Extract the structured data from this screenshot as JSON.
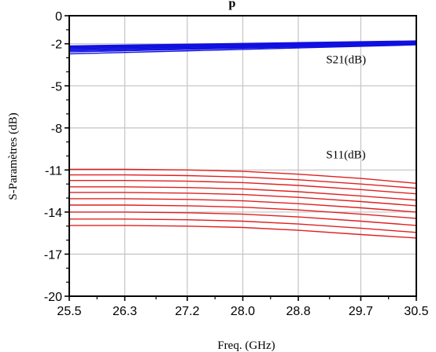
{
  "chart_data": {
    "type": "line",
    "title": "p",
    "xlabel": "Freq. (GHz)",
    "ylabel": "S-Paramètres (dB)",
    "xlim": [
      25.5,
      30.5
    ],
    "ylim": [
      -20,
      0
    ],
    "x_ticks": [
      "25.5",
      "26.3",
      "27.2",
      "28.0",
      "28.8",
      "29.7",
      "30.5"
    ],
    "y_ticks": [
      "0",
      "-2",
      "-5",
      "-8",
      "-11",
      "-14",
      "-17",
      "-20"
    ],
    "grid": true,
    "annotations": [
      {
        "text": "S21(dB)",
        "x": 29.2,
        "y": -3.1
      },
      {
        "text": "S11(dB)",
        "x": 29.2,
        "y": -9.9
      }
    ],
    "colors": {
      "S21": "#1010e0",
      "S11": "#e02020",
      "grid": "#c8c8c8",
      "axis": "#000000"
    },
    "series": [
      {
        "group": "S21",
        "x": [
          25.5,
          30.5
        ],
        "y": [
          -2.15,
          -1.8
        ]
      },
      {
        "group": "S21",
        "x": [
          25.5,
          30.5
        ],
        "y": [
          -2.22,
          -1.84
        ]
      },
      {
        "group": "S21",
        "x": [
          25.5,
          30.5
        ],
        "y": [
          -2.28,
          -1.88
        ]
      },
      {
        "group": "S21",
        "x": [
          25.5,
          30.5
        ],
        "y": [
          -2.35,
          -1.92
        ]
      },
      {
        "group": "S21",
        "x": [
          25.5,
          30.5
        ],
        "y": [
          -2.42,
          -1.96
        ]
      },
      {
        "group": "S21",
        "x": [
          25.5,
          30.5
        ],
        "y": [
          -2.5,
          -2.0
        ]
      },
      {
        "group": "S21",
        "x": [
          25.5,
          30.5
        ],
        "y": [
          -2.58,
          -2.04
        ]
      },
      {
        "group": "S21",
        "x": [
          25.5,
          30.5
        ],
        "y": [
          -2.72,
          -2.08
        ]
      },
      {
        "group": "S11",
        "x": [
          25.5,
          26.3,
          27.2,
          28.0,
          28.8,
          29.7,
          30.5
        ],
        "y": [
          -10.95,
          -10.95,
          -11.0,
          -11.1,
          -11.3,
          -11.6,
          -11.95
        ]
      },
      {
        "group": "S11",
        "x": [
          25.5,
          26.3,
          27.2,
          28.0,
          28.8,
          29.7,
          30.5
        ],
        "y": [
          -11.35,
          -11.35,
          -11.4,
          -11.5,
          -11.7,
          -12.0,
          -12.3
        ]
      },
      {
        "group": "S11",
        "x": [
          25.5,
          26.3,
          27.2,
          28.0,
          28.8,
          29.7,
          30.5
        ],
        "y": [
          -11.75,
          -11.75,
          -11.8,
          -11.9,
          -12.1,
          -12.4,
          -12.7
        ]
      },
      {
        "group": "S11",
        "x": [
          25.5,
          26.3,
          27.2,
          28.0,
          28.8,
          29.7,
          30.5
        ],
        "y": [
          -12.2,
          -12.2,
          -12.25,
          -12.35,
          -12.55,
          -12.85,
          -13.15
        ]
      },
      {
        "group": "S11",
        "x": [
          25.5,
          26.3,
          27.2,
          28.0,
          28.8,
          29.7,
          30.5
        ],
        "y": [
          -12.6,
          -12.6,
          -12.65,
          -12.75,
          -12.95,
          -13.25,
          -13.55
        ]
      },
      {
        "group": "S11",
        "x": [
          25.5,
          26.3,
          27.2,
          28.0,
          28.8,
          29.7,
          30.5
        ],
        "y": [
          -13.05,
          -13.05,
          -13.1,
          -13.2,
          -13.4,
          -13.7,
          -14.0
        ]
      },
      {
        "group": "S11",
        "x": [
          25.5,
          26.3,
          27.2,
          28.0,
          28.8,
          29.7,
          30.5
        ],
        "y": [
          -13.5,
          -13.5,
          -13.55,
          -13.65,
          -13.85,
          -14.15,
          -14.45
        ]
      },
      {
        "group": "S11",
        "x": [
          25.5,
          26.3,
          27.2,
          28.0,
          28.8,
          29.7,
          30.5
        ],
        "y": [
          -14.0,
          -14.0,
          -14.05,
          -14.15,
          -14.35,
          -14.65,
          -14.95
        ]
      },
      {
        "group": "S11",
        "x": [
          25.5,
          26.3,
          27.2,
          28.0,
          28.8,
          29.7,
          30.5
        ],
        "y": [
          -14.5,
          -14.5,
          -14.55,
          -14.65,
          -14.85,
          -15.15,
          -15.45
        ]
      },
      {
        "group": "S11",
        "x": [
          25.5,
          26.3,
          27.2,
          28.0,
          28.8,
          29.7,
          30.5
        ],
        "y": [
          -14.95,
          -14.95,
          -15.0,
          -15.1,
          -15.3,
          -15.6,
          -15.85
        ]
      }
    ]
  }
}
